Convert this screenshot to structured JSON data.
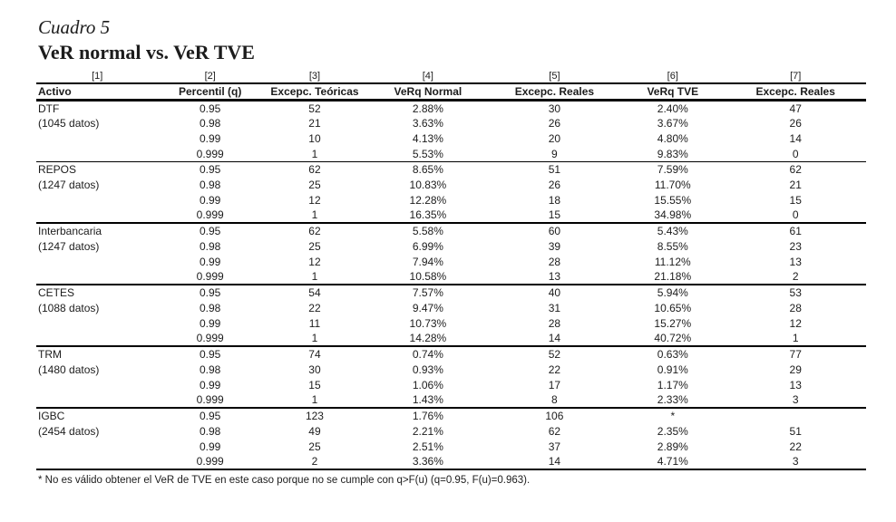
{
  "page": {
    "label": "Cuadro 5",
    "title": "VeR normal vs. VeR TVE",
    "footnote": "* No es válido obtener el VeR de TVE en este caso porque no se cumple con q>F(u)  (q=0.95, F(u)=0.963)."
  },
  "table": {
    "column_refs": [
      "[1]",
      "[2]",
      "[3]",
      "[4]",
      "[5]",
      "[6]",
      "[7]"
    ],
    "headers": [
      "Activo",
      "Percentil (q)",
      "Excepc. Teóricas",
      "VeRq Normal",
      "Excepc. Reales",
      "VeRq TVE",
      "Excepc. Reales"
    ],
    "groups": [
      {
        "activo": "DTF",
        "datos": "(1045 datos)",
        "rows": [
          [
            "0.95",
            "52",
            "2.88%",
            "30",
            "2.40%",
            "47"
          ],
          [
            "0.98",
            "21",
            "3.63%",
            "26",
            "3.67%",
            "26"
          ],
          [
            "0.99",
            "10",
            "4.13%",
            "20",
            "4.80%",
            "14"
          ],
          [
            "0.999",
            "1",
            "5.53%",
            "9",
            "9.83%",
            "0"
          ]
        ]
      },
      {
        "activo": "REPOS",
        "datos": "(1247 datos)",
        "rows": [
          [
            "0.95",
            "62",
            "8.65%",
            "51",
            "7.59%",
            "62"
          ],
          [
            "0.98",
            "25",
            "10.83%",
            "26",
            "11.70%",
            "21"
          ],
          [
            "0.99",
            "12",
            "12.28%",
            "18",
            "15.55%",
            "15"
          ],
          [
            "0.999",
            "1",
            "16.35%",
            "15",
            "34.98%",
            "0"
          ]
        ]
      },
      {
        "activo": "Interbancaria",
        "datos": "(1247 datos)",
        "rows": [
          [
            "0.95",
            "62",
            "5.58%",
            "60",
            "5.43%",
            "61"
          ],
          [
            "0.98",
            "25",
            "6.99%",
            "39",
            "8.55%",
            "23"
          ],
          [
            "0.99",
            "12",
            "7.94%",
            "28",
            "11.12%",
            "13"
          ],
          [
            "0.999",
            "1",
            "10.58%",
            "13",
            "21.18%",
            "2"
          ]
        ]
      },
      {
        "activo": "CETES",
        "datos": "(1088 datos)",
        "rows": [
          [
            "0.95",
            "54",
            "7.57%",
            "40",
            "5.94%",
            "53"
          ],
          [
            "0.98",
            "22",
            "9.47%",
            "31",
            "10.65%",
            "28"
          ],
          [
            "0.99",
            "11",
            "10.73%",
            "28",
            "15.27%",
            "12"
          ],
          [
            "0.999",
            "1",
            "14.28%",
            "14",
            "40.72%",
            "1"
          ]
        ]
      },
      {
        "activo": "TRM",
        "datos": "(1480 datos)",
        "rows": [
          [
            "0.95",
            "74",
            "0.74%",
            "52",
            "0.63%",
            "77"
          ],
          [
            "0.98",
            "30",
            "0.93%",
            "22",
            "0.91%",
            "29"
          ],
          [
            "0.99",
            "15",
            "1.06%",
            "17",
            "1.17%",
            "13"
          ],
          [
            "0.999",
            "1",
            "1.43%",
            "8",
            "2.33%",
            "3"
          ]
        ]
      },
      {
        "activo": "IGBC",
        "datos": "(2454 datos)",
        "rows": [
          [
            "0.95",
            "123",
            "1.76%",
            "106",
            "*",
            ""
          ],
          [
            "0.98",
            "49",
            "2.21%",
            "62",
            "2.35%",
            "51"
          ],
          [
            "0.99",
            "25",
            "2.51%",
            "37",
            "2.89%",
            "22"
          ],
          [
            "0.999",
            "2",
            "3.36%",
            "14",
            "4.71%",
            "3"
          ]
        ]
      }
    ]
  }
}
